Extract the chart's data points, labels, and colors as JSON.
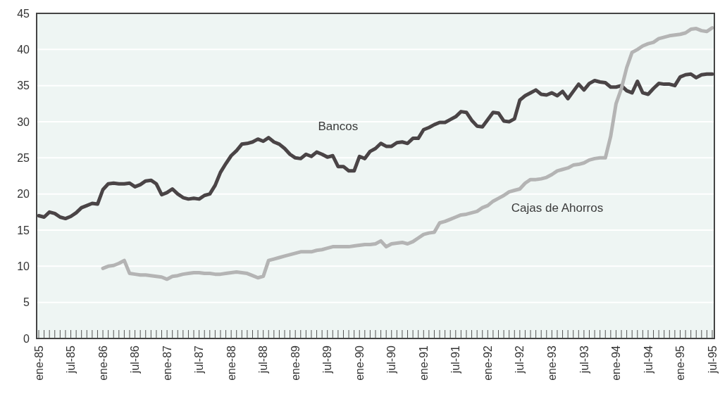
{
  "chart_data": {
    "type": "line",
    "categories": [
      "ene-85",
      null,
      null,
      null,
      null,
      null,
      "jul-85",
      null,
      null,
      null,
      null,
      null,
      "ene-86",
      null,
      null,
      null,
      null,
      null,
      "jul-86",
      null,
      null,
      null,
      null,
      null,
      "ene-87",
      null,
      null,
      null,
      null,
      null,
      "jul-87",
      null,
      null,
      null,
      null,
      null,
      "ene-88",
      null,
      null,
      null,
      null,
      null,
      "jul-88",
      null,
      null,
      null,
      null,
      null,
      "ene-89",
      null,
      null,
      null,
      null,
      null,
      "jul-89",
      null,
      null,
      null,
      null,
      null,
      "ene-90",
      null,
      null,
      null,
      null,
      null,
      "jul-90",
      null,
      null,
      null,
      null,
      null,
      "ene-91",
      null,
      null,
      null,
      null,
      null,
      "jul-91",
      null,
      null,
      null,
      null,
      null,
      "ene-92",
      null,
      null,
      null,
      null,
      null,
      "jul-92",
      null,
      null,
      null,
      null,
      null,
      "ene-93",
      null,
      null,
      null,
      null,
      null,
      "jul-93",
      null,
      null,
      null,
      null,
      null,
      "ene-94",
      null,
      null,
      null,
      null,
      null,
      "jul-94",
      null,
      null,
      null,
      null,
      null,
      "ene-95",
      null,
      null,
      null,
      null,
      null,
      "jul-95"
    ],
    "series": [
      {
        "name": "Bancos",
        "color": "#4a4446",
        "values": [
          17.0,
          16.8,
          17.5,
          17.3,
          16.8,
          16.6,
          16.9,
          17.4,
          18.1,
          18.4,
          18.7,
          18.6,
          20.6,
          21.4,
          21.5,
          21.4,
          21.4,
          21.5,
          21.0,
          21.3,
          21.8,
          21.9,
          21.4,
          19.9,
          20.2,
          20.7,
          20.0,
          19.5,
          19.3,
          19.4,
          19.3,
          19.8,
          20.0,
          21.2,
          23.0,
          24.2,
          25.3,
          26.0,
          26.9,
          27.0,
          27.2,
          27.6,
          27.3,
          27.8,
          27.2,
          26.9,
          26.3,
          25.5,
          25.0,
          24.9,
          25.5,
          25.2,
          25.8,
          25.5,
          25.1,
          25.3,
          23.8,
          23.8,
          23.2,
          23.2,
          25.2,
          24.9,
          25.9,
          26.3,
          27.0,
          26.6,
          26.6,
          27.1,
          27.2,
          27.0,
          27.7,
          27.7,
          28.9,
          29.2,
          29.6,
          29.9,
          29.9,
          30.3,
          30.7,
          31.4,
          31.3,
          30.2,
          29.4,
          29.3,
          30.3,
          31.3,
          31.2,
          30.1,
          30.0,
          30.4,
          33.0,
          33.6,
          34.0,
          34.4,
          33.8,
          33.7,
          34.0,
          33.6,
          34.2,
          33.2,
          34.2,
          35.2,
          34.4,
          35.3,
          35.7,
          35.5,
          35.4,
          34.8,
          34.8,
          35.0,
          34.3,
          34.0,
          35.6,
          34.0,
          33.8,
          34.6,
          35.3,
          35.2,
          35.2,
          35.0,
          36.2,
          36.5,
          36.6,
          36.1,
          36.5,
          36.6,
          36.6
        ]
      },
      {
        "name": "Cajas de Ahorros",
        "color": "#b4b4b4",
        "values": [
          null,
          null,
          null,
          null,
          null,
          null,
          null,
          null,
          null,
          null,
          null,
          null,
          9.7,
          10.0,
          10.1,
          10.4,
          10.8,
          9.0,
          8.9,
          8.8,
          8.8,
          8.7,
          8.6,
          8.5,
          8.2,
          8.6,
          8.7,
          8.9,
          9.0,
          9.1,
          9.1,
          9.0,
          9.0,
          8.9,
          8.9,
          9.0,
          9.1,
          9.2,
          9.1,
          9.0,
          8.7,
          8.4,
          8.6,
          10.8,
          11.0,
          11.2,
          11.4,
          11.6,
          11.8,
          12.0,
          12.0,
          12.0,
          12.2,
          12.3,
          12.5,
          12.7,
          12.7,
          12.7,
          12.7,
          12.8,
          12.9,
          13.0,
          13.0,
          13.1,
          13.5,
          12.7,
          13.1,
          13.2,
          13.3,
          13.1,
          13.4,
          13.9,
          14.4,
          14.6,
          14.7,
          16.0,
          16.2,
          16.5,
          16.8,
          17.1,
          17.2,
          17.4,
          17.6,
          18.1,
          18.4,
          19.0,
          19.4,
          19.8,
          20.3,
          20.5,
          20.7,
          21.5,
          22.0,
          22.0,
          22.1,
          22.3,
          22.7,
          23.2,
          23.4,
          23.6,
          24.0,
          24.1,
          24.3,
          24.7,
          24.9,
          25.0,
          25.0,
          28.0,
          32.5,
          34.6,
          37.5,
          39.6,
          40.0,
          40.5,
          40.8,
          41.0,
          41.5,
          41.7,
          41.9,
          42.0,
          42.1,
          42.3,
          42.8,
          42.9,
          42.6,
          42.5,
          43.0
        ]
      }
    ],
    "ylim": [
      0,
      45
    ],
    "yticks": [
      0,
      5,
      10,
      15,
      20,
      25,
      30,
      35,
      40,
      45
    ],
    "grid": "y",
    "line_style": "solid",
    "marker": "none"
  }
}
